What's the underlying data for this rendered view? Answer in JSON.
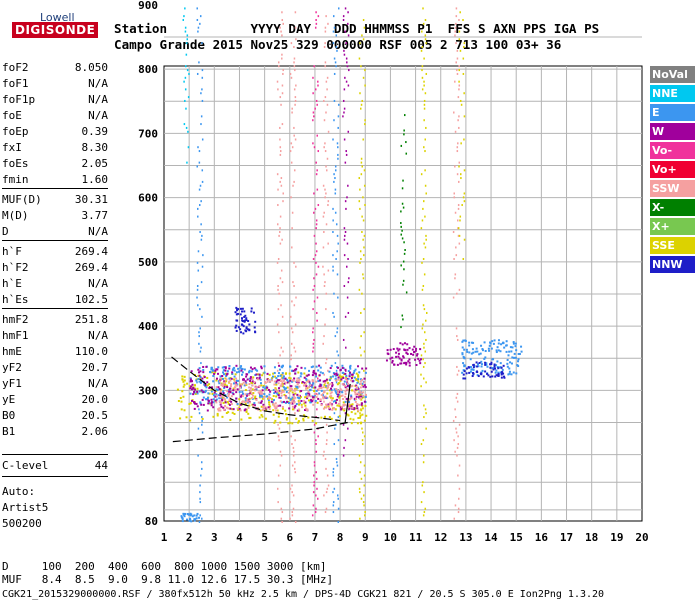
{
  "logo": {
    "top": "Lowell",
    "main": "DIGISONDE"
  },
  "header": {
    "row1": "Station           YYYY DAY   DDD HHMMSS P1  FFS S AXN PPS IGA PS",
    "row2": "Campo Grande 2015 Nov25 329 000000 RSF 005 2 713 100 03+ 36"
  },
  "params": [
    {
      "k": "foF2",
      "v": "8.050"
    },
    {
      "k": "foF1",
      "v": "N/A"
    },
    {
      "k": "foF1p",
      "v": "N/A"
    },
    {
      "k": "foE",
      "v": "N/A"
    },
    {
      "k": "foEp",
      "v": "0.39"
    },
    {
      "k": "fxI",
      "v": "8.30"
    },
    {
      "k": "foEs",
      "v": "2.05"
    },
    {
      "k": "fmin",
      "v": "1.60"
    },
    {
      "k": "MUF(D)",
      "v": "30.31"
    },
    {
      "k": "M(D)",
      "v": "3.77"
    },
    {
      "k": "D",
      "v": "N/A"
    },
    {
      "k": "h`F",
      "v": "269.4"
    },
    {
      "k": "h`F2",
      "v": "269.4"
    },
    {
      "k": "h`E",
      "v": "N/A"
    },
    {
      "k": "h`Es",
      "v": "102.5"
    },
    {
      "k": "hmF2",
      "v": "251.8"
    },
    {
      "k": "hmF1",
      "v": "N/A"
    },
    {
      "k": "hmE",
      "v": "110.0"
    },
    {
      "k": "yF2",
      "v": "20.7"
    },
    {
      "k": "yF1",
      "v": "N/A"
    },
    {
      "k": "yE",
      "v": "20.0"
    },
    {
      "k": "B0",
      "v": "20.5"
    },
    {
      "k": "B1",
      "v": "2.06"
    },
    {
      "k": "C-level",
      "v": "44"
    }
  ],
  "auto": {
    "line1": "Auto:",
    "line2": "Artist5",
    "line3": "500200"
  },
  "legend": [
    {
      "label": "NoVal",
      "color": "#808080"
    },
    {
      "label": "NNE",
      "color": "#00c8f0"
    },
    {
      "label": "E",
      "color": "#3c96f0"
    },
    {
      "label": "W",
      "color": "#a0009c"
    },
    {
      "label": "Vo-",
      "color": "#f0329c"
    },
    {
      "label": "Vo+",
      "color": "#f00032"
    },
    {
      "label": "SSW",
      "color": "#f5a0a0"
    },
    {
      "label": "X-",
      "color": "#008000"
    },
    {
      "label": "X+",
      "color": "#78c850"
    },
    {
      "label": "SSE",
      "color": "#dcd200"
    },
    {
      "label": "NNW",
      "color": "#1e1ec8"
    }
  ],
  "footer": {
    "row1": "D     100  200  400  600  800 1000 1500 3000 [km]",
    "row2": "MUF   8.4  8.5  9.0  9.8 11.0 12.6 17.5 30.3 [MHz]",
    "row3": "CGK21_2015329000000.RSF / 380fx512h 50 kHz 2.5 km / DPS-4D CGK21 821 / 20.5 S 305.0 E Ion2Png 1.3.20"
  },
  "chart_data": {
    "type": "scatter",
    "title": "",
    "xlabel": "",
    "ylabel": "",
    "xlim": [
      1,
      20
    ],
    "ylim": [
      80,
      900
    ],
    "xticks": [
      "1",
      "2",
      "3",
      "4",
      "5",
      "6",
      "7",
      "8",
      "9",
      "10",
      "11",
      "12",
      "13",
      "14",
      "15",
      "16",
      "17",
      "18",
      "19",
      "20"
    ],
    "yticks": [
      "80",
      "200",
      "300",
      "400",
      "500",
      "600",
      "700",
      "800",
      "900"
    ],
    "grid": true,
    "profile_curve": [
      [
        8.3,
        250
      ],
      [
        7.0,
        240
      ],
      [
        5.0,
        232
      ],
      [
        3.0,
        226
      ],
      [
        1.3,
        220
      ]
    ],
    "trace_curve": [
      [
        1.3,
        352
      ],
      [
        2.0,
        330
      ],
      [
        3.0,
        300
      ],
      [
        4.0,
        280
      ],
      [
        5.0,
        268
      ],
      [
        6.0,
        262
      ],
      [
        7.0,
        258
      ],
      [
        8.0,
        253
      ]
    ],
    "clusters": [
      {
        "x": [
          1.6,
          2.4
        ],
        "y": [
          80,
          95
        ],
        "color": "#3c96f0"
      },
      {
        "x": [
          1.5,
          9.0
        ],
        "y": [
          250,
          330
        ],
        "color": "#dcd200"
      },
      {
        "x": [
          2.0,
          9.0
        ],
        "y": [
          280,
          340
        ],
        "color": "#3c96f0"
      },
      {
        "x": [
          2.0,
          9.0
        ],
        "y": [
          270,
          340
        ],
        "color": "#a0009c"
      },
      {
        "x": [
          3.0,
          9.0
        ],
        "y": [
          270,
          320
        ],
        "color": "#f5a0a0"
      },
      {
        "x": [
          9.8,
          11.2
        ],
        "y": [
          340,
          375
        ],
        "color": "#a0009c"
      },
      {
        "x": [
          12.8,
          15.2
        ],
        "y": [
          325,
          380
        ],
        "color": "#3c96f0"
      },
      {
        "x": [
          12.8,
          14.5
        ],
        "y": [
          320,
          345
        ],
        "color": "#1e1ec8"
      },
      {
        "x": [
          3.8,
          4.6
        ],
        "y": [
          390,
          430
        ],
        "color": "#1e1ec8"
      }
    ],
    "vertical_traces": [
      {
        "x": 1.85,
        "y": [
          650,
          900
        ],
        "color": "#00c8f0"
      },
      {
        "x": 2.4,
        "y": [
          80,
          900
        ],
        "color": "#3c96f0"
      },
      {
        "x": 5.6,
        "y": [
          80,
          900
        ],
        "color": "#f5a0a0"
      },
      {
        "x": 6.1,
        "y": [
          80,
          900
        ],
        "color": "#f5a0a0"
      },
      {
        "x": 7.0,
        "y": [
          80,
          900
        ],
        "color": "#f0329c"
      },
      {
        "x": 7.4,
        "y": [
          80,
          900
        ],
        "color": "#f5a0a0"
      },
      {
        "x": 7.8,
        "y": [
          80,
          900
        ],
        "color": "#3c96f0"
      },
      {
        "x": 8.2,
        "y": [
          200,
          900
        ],
        "color": "#a0009c"
      },
      {
        "x": 8.85,
        "y": [
          80,
          900
        ],
        "color": "#dcd200"
      },
      {
        "x": 10.5,
        "y": [
          400,
          730
        ],
        "color": "#008000"
      },
      {
        "x": 11.3,
        "y": [
          80,
          900
        ],
        "color": "#dcd200"
      },
      {
        "x": 12.6,
        "y": [
          80,
          900
        ],
        "color": "#f5a0a0"
      },
      {
        "x": 12.8,
        "y": [
          500,
          900
        ],
        "color": "#dcd200"
      }
    ]
  }
}
